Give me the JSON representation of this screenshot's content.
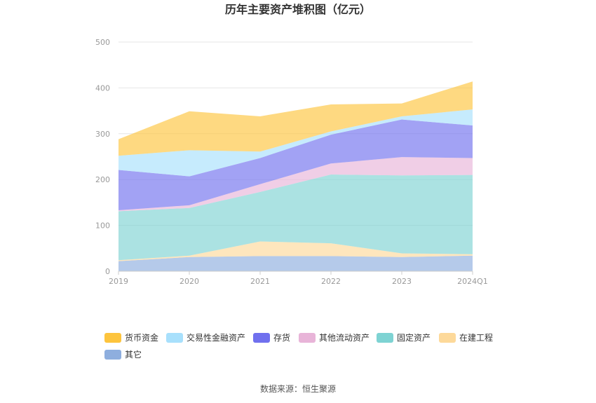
{
  "chart_data": {
    "type": "area",
    "stacked": true,
    "title": "历年主要资产堆积图（亿元）",
    "categories": [
      "2019",
      "2020",
      "2021",
      "2022",
      "2023",
      "2024Q1"
    ],
    "y_ticks": [
      "0",
      "100",
      "200",
      "300",
      "400",
      "500"
    ],
    "ylim": [
      0,
      500
    ],
    "grid": true,
    "legend_position": "bottom",
    "series": [
      {
        "name": "其它",
        "color": "#8eaede",
        "values": [
          22,
          31,
          33,
          33,
          31,
          34
        ]
      },
      {
        "name": "在建工程",
        "color": "#fdd99a",
        "values": [
          2,
          3,
          32,
          28,
          8,
          3
        ]
      },
      {
        "name": "固定资产",
        "color": "#7ed3d3",
        "values": [
          107,
          104,
          108,
          150,
          170,
          173
        ]
      },
      {
        "name": "其他流动资产",
        "color": "#e8b4d8",
        "values": [
          2,
          6,
          17,
          24,
          40,
          37
        ]
      },
      {
        "name": "存货",
        "color": "#7070ee",
        "values": [
          88,
          63,
          57,
          63,
          82,
          71
        ]
      },
      {
        "name": "交易性金融资产",
        "color": "#a8e0fc",
        "values": [
          31,
          57,
          14,
          7,
          7,
          35
        ]
      },
      {
        "name": "货币资金",
        "color": "#fdc43d",
        "values": [
          36,
          85,
          77,
          59,
          28,
          61
        ]
      }
    ],
    "legend_order": [
      "货币资金",
      "交易性金融资产",
      "存货",
      "其他流动资产",
      "固定资产",
      "在建工程",
      "其它"
    ],
    "source": "数据来源：恒生聚源"
  }
}
